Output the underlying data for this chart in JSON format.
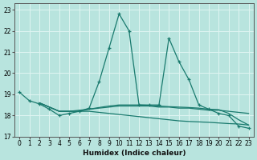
{
  "title": "",
  "xlabel": "Humidex (Indice chaleur)",
  "xlim": [
    -0.5,
    23.5
  ],
  "ylim": [
    17,
    23.3
  ],
  "yticks": [
    17,
    18,
    19,
    20,
    21,
    22,
    23
  ],
  "xticks": [
    0,
    1,
    2,
    3,
    4,
    5,
    6,
    7,
    8,
    9,
    10,
    11,
    12,
    13,
    14,
    15,
    16,
    17,
    18,
    19,
    20,
    21,
    22,
    23
  ],
  "bg_color": "#b8e4de",
  "line_color": "#1a7a6e",
  "grid_color": "#e0f5f2",
  "line1_x": [
    0,
    1,
    2,
    3,
    4,
    5,
    6,
    7,
    8,
    9,
    10,
    11,
    12,
    13,
    14,
    15,
    16,
    17,
    18,
    19,
    20,
    21,
    22,
    23
  ],
  "line1_y": [
    19.1,
    18.7,
    18.55,
    18.3,
    18.0,
    18.1,
    18.2,
    18.35,
    19.6,
    21.2,
    22.8,
    22.0,
    18.5,
    18.5,
    18.5,
    21.65,
    20.55,
    19.7,
    18.5,
    18.3,
    18.1,
    18.0,
    17.5,
    17.4
  ],
  "line2_x": [
    2,
    3,
    4,
    5,
    6,
    7,
    8,
    9,
    10,
    11,
    12,
    13,
    14,
    15,
    16,
    17,
    18,
    19,
    20,
    21,
    22,
    23
  ],
  "line2_y": [
    18.6,
    18.4,
    18.2,
    18.2,
    18.2,
    18.3,
    18.35,
    18.4,
    18.45,
    18.45,
    18.45,
    18.45,
    18.4,
    18.4,
    18.35,
    18.35,
    18.3,
    18.25,
    18.25,
    18.2,
    18.15,
    18.1
  ],
  "line3_x": [
    2,
    3,
    4,
    5,
    6,
    7,
    8,
    9,
    10,
    11,
    12,
    13,
    14,
    15,
    16,
    17,
    18,
    19,
    20,
    21,
    22,
    23
  ],
  "line3_y": [
    18.6,
    18.4,
    18.2,
    18.2,
    18.2,
    18.2,
    18.15,
    18.1,
    18.05,
    18.0,
    17.95,
    17.9,
    17.85,
    17.8,
    17.75,
    17.72,
    17.7,
    17.68,
    17.65,
    17.62,
    17.6,
    17.55
  ],
  "line4_x": [
    2,
    3,
    4,
    5,
    6,
    7,
    8,
    9,
    10,
    11,
    12,
    13,
    14,
    15,
    16,
    17,
    18,
    19,
    20,
    21,
    22,
    23
  ],
  "line4_y": [
    18.6,
    18.4,
    18.2,
    18.2,
    18.25,
    18.3,
    18.38,
    18.45,
    18.5,
    18.5,
    18.5,
    18.48,
    18.45,
    18.42,
    18.4,
    18.38,
    18.35,
    18.3,
    18.28,
    18.1,
    17.8,
    17.55
  ]
}
